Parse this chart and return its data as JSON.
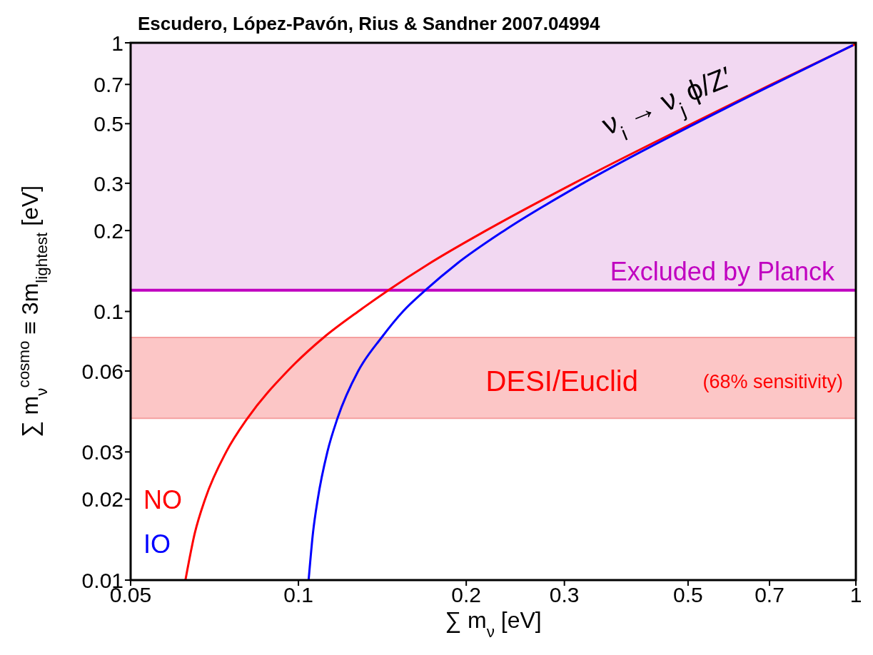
{
  "chart_data": {
    "type": "line",
    "title": "Escudero, López-Pavón, Rius & Sandner 2007.04994",
    "xlabel": "∑ m$_{ν}$ [eV]",
    "ylabel": "∑ m$_{ν}$$^{cosmo}$ ≡ 3m$_{lightest}$ [eV]",
    "log": "xy",
    "marker": "none",
    "legend": "bottom left",
    "xlim": [
      0.05,
      1
    ],
    "xticks": [
      0.05,
      0.1,
      0.2,
      0.3,
      0.5,
      0.7,
      1
    ],
    "ylim": [
      0.01,
      1
    ],
    "yticks": [
      0.01,
      0.02,
      0.03,
      0.06,
      0.1,
      0.2,
      0.3,
      0.5,
      0.7,
      1
    ],
    "series": [
      {
        "name": "NO",
        "color": "#ff0000",
        "x": [
          0.0627,
          0.0652,
          0.068,
          0.0742,
          0.081,
          0.0956,
          0.111,
          0.128,
          0.145,
          0.171,
          0.217,
          0.312,
          0.508,
          0.705,
          1
        ],
        "values": [
          0.01,
          0.015,
          0.02,
          0.03,
          0.04,
          0.06,
          0.08,
          0.1,
          0.12,
          0.15,
          0.2,
          0.3,
          0.5,
          0.7,
          0.99
        ]
      },
      {
        "name": "IO",
        "color": "#0000ff",
        "x": [
          0.1043,
          0.1062,
          0.1083,
          0.1127,
          0.1175,
          0.128,
          0.141,
          0.154,
          0.169,
          0.192,
          0.234,
          0.324,
          0.515,
          0.711,
          0.988
        ],
        "values": [
          0.01,
          0.015,
          0.02,
          0.03,
          0.04,
          0.06,
          0.08,
          0.1,
          0.12,
          0.15,
          0.2,
          0.3,
          0.5,
          0.7,
          0.98
        ]
      }
    ],
    "ref_lines": [
      {
        "axis": "y",
        "value": 0.12,
        "label": "Excluded by Planck",
        "color": "#c000c0"
      }
    ],
    "bands": [
      {
        "axis": "y",
        "from": 0.12,
        "to": 1,
        "label": null,
        "color": "#f2d8f2"
      },
      {
        "axis": "y",
        "from": 0.04,
        "to": 0.08,
        "label": "DESI/Euclid",
        "color": "#fcc6c6"
      }
    ],
    "annotations": [
      "(68% sensitivity)",
      "ν$_{i}$ → ν$_{j}$ ϕ/Z′"
    ]
  }
}
